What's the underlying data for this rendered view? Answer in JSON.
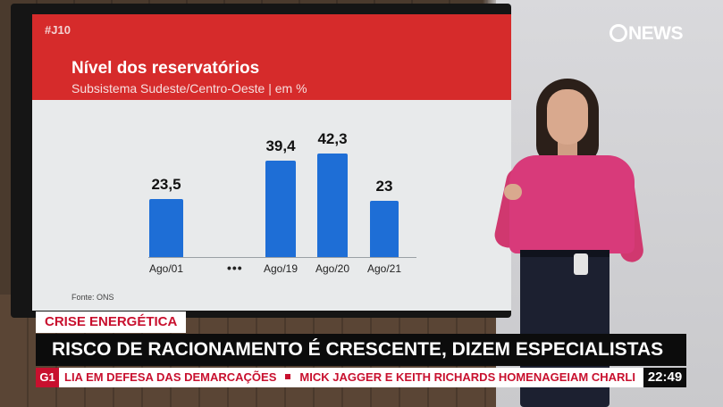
{
  "screen": {
    "hashtag": "#J10",
    "source": "Fonte: ONS"
  },
  "chart_data": {
    "type": "bar",
    "title": "Nível dos reservatórios",
    "subtitle": "Subsistema Sudeste/Centro-Oeste | em %",
    "categories": [
      "Ago/01",
      "Ago/19",
      "Ago/20",
      "Ago/21"
    ],
    "values": [
      23.5,
      39.4,
      42.3,
      23
    ],
    "value_labels": [
      "23,5",
      "39,4",
      "42,3",
      "23"
    ],
    "gap_marker": "•••",
    "bar_color": "#1e6ed6",
    "ylim": [
      0,
      50
    ],
    "grid": false
  },
  "channel": {
    "logo": "NEWS"
  },
  "lower_third": {
    "tag": "CRISE ENERGÉTICA",
    "headline": "RISCO DE RACIONAMENTO É CRESCENTE, DIZEM ESPECIALISTAS",
    "ticker_badge": "G1",
    "ticker_items": [
      "LIA EM DEFESA DAS DEMARCAÇÕES",
      "MICK JAGGER E KEITH RICHARDS HOMENAGEIAM CHARLI"
    ],
    "clock": "22:49"
  },
  "colors": {
    "header_red": "#d62b2b",
    "tag_red": "#c8102e",
    "headline_bg": "#0c0c0c"
  }
}
